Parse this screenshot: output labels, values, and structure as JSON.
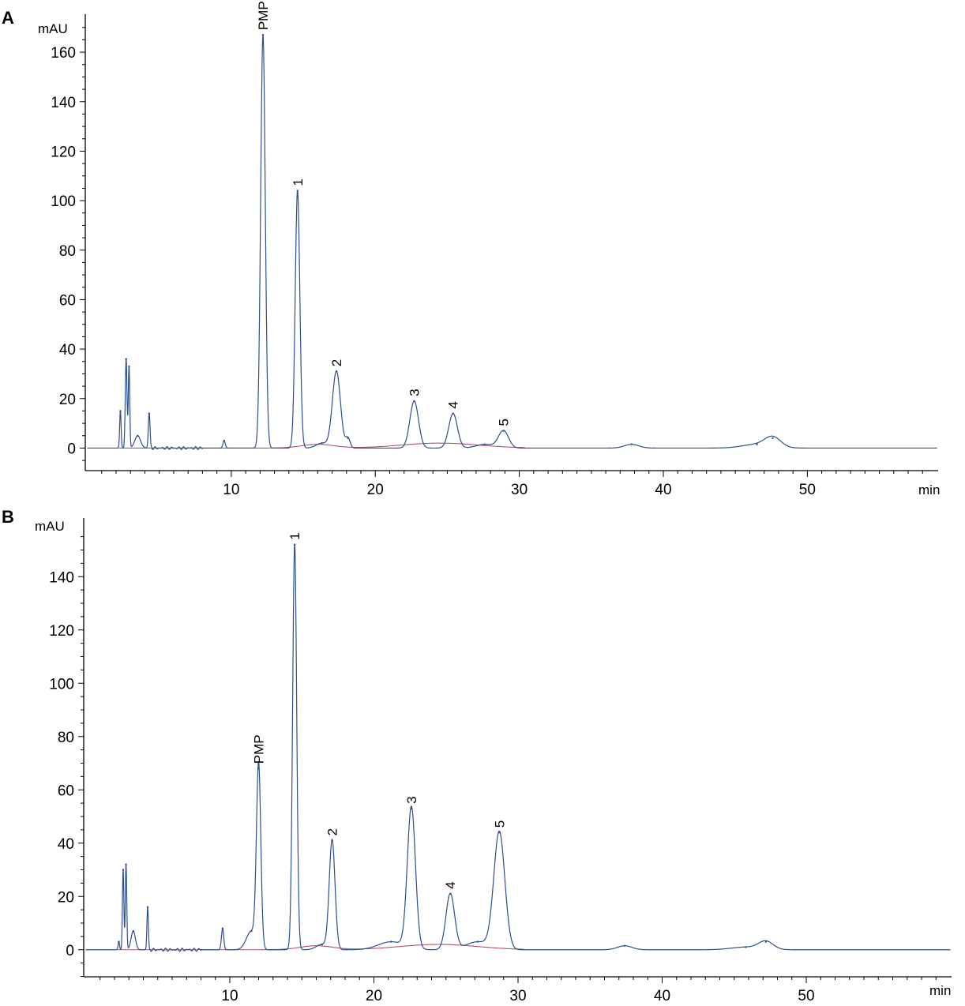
{
  "chart_data": [
    {
      "type": "line",
      "panel": "A",
      "xlabel": "min",
      "ylabel": "mAU",
      "xlim": [
        0,
        59
      ],
      "ylim": [
        -8,
        172
      ],
      "x_ticks": [
        10,
        20,
        30,
        40,
        50
      ],
      "y_ticks": [
        0,
        20,
        40,
        60,
        80,
        100,
        120,
        140,
        160
      ],
      "grid": false,
      "legend": "none",
      "colors": {
        "signal": "#2d4f8e",
        "baseline": "#b0506e"
      },
      "peaks": [
        {
          "label": "",
          "rt": 2.3,
          "height": 15,
          "width": 0.05
        },
        {
          "label": "",
          "rt": 2.7,
          "height": 36,
          "width": 0.06
        },
        {
          "label": "",
          "rt": 2.9,
          "height": 33,
          "width": 0.05
        },
        {
          "label": "",
          "rt": 3.5,
          "height": 5,
          "width": 0.2
        },
        {
          "label": "",
          "rt": 4.3,
          "height": 14,
          "width": 0.06
        },
        {
          "label": "",
          "rt": 9.5,
          "height": 3,
          "width": 0.08
        },
        {
          "label": "PMP",
          "rt": 12.2,
          "height": 167,
          "width": 0.16
        },
        {
          "label": "1",
          "rt": 14.6,
          "height": 104,
          "width": 0.16
        },
        {
          "label": "",
          "rt": 16.3,
          "height": 2,
          "width": 0.4
        },
        {
          "label": "2",
          "rt": 17.3,
          "height": 31,
          "width": 0.28
        },
        {
          "label": "",
          "rt": 18.1,
          "height": 4,
          "width": 0.15
        },
        {
          "label": "3",
          "rt": 22.7,
          "height": 19,
          "width": 0.3
        },
        {
          "label": "4",
          "rt": 25.4,
          "height": 14,
          "width": 0.3
        },
        {
          "label": "",
          "rt": 27.6,
          "height": 1.5,
          "width": 0.6
        },
        {
          "label": "5",
          "rt": 28.9,
          "height": 7,
          "width": 0.35
        },
        {
          "label": "",
          "rt": 37.8,
          "height": 1.5,
          "width": 0.5
        },
        {
          "label": "",
          "rt": 46.5,
          "height": 1.5,
          "width": 1.0
        },
        {
          "label": "",
          "rt": 47.6,
          "height": 4,
          "width": 0.55
        }
      ]
    },
    {
      "type": "line",
      "panel": "B",
      "xlabel": "min",
      "ylabel": "mAU",
      "xlim": [
        0,
        60
      ],
      "ylim": [
        -10,
        158
      ],
      "x_ticks": [
        10,
        20,
        30,
        40,
        50
      ],
      "y_ticks": [
        0,
        20,
        40,
        60,
        80,
        100,
        120,
        140
      ],
      "grid": false,
      "legend": "none",
      "colors": {
        "signal": "#2d4f8e",
        "baseline": "#b0506e"
      },
      "peaks": [
        {
          "label": "",
          "rt": 2.3,
          "height": 3,
          "width": 0.05
        },
        {
          "label": "",
          "rt": 2.6,
          "height": 30,
          "width": 0.05
        },
        {
          "label": "",
          "rt": 2.8,
          "height": 32,
          "width": 0.05
        },
        {
          "label": "",
          "rt": 3.3,
          "height": 7,
          "width": 0.15
        },
        {
          "label": "",
          "rt": 4.3,
          "height": 16,
          "width": 0.05
        },
        {
          "label": "",
          "rt": 9.5,
          "height": 8,
          "width": 0.08
        },
        {
          "label": "",
          "rt": 11.5,
          "height": 7,
          "width": 0.35
        },
        {
          "label": "PMP",
          "rt": 12.0,
          "height": 68,
          "width": 0.15
        },
        {
          "label": "1",
          "rt": 14.5,
          "height": 152,
          "width": 0.14
        },
        {
          "label": "",
          "rt": 16.4,
          "height": 2,
          "width": 0.4
        },
        {
          "label": "2",
          "rt": 17.1,
          "height": 41,
          "width": 0.2
        },
        {
          "label": "",
          "rt": 21.2,
          "height": 3,
          "width": 0.9
        },
        {
          "label": "3",
          "rt": 22.6,
          "height": 53,
          "width": 0.28
        },
        {
          "label": "4",
          "rt": 25.3,
          "height": 21,
          "width": 0.3
        },
        {
          "label": "",
          "rt": 27.2,
          "height": 3,
          "width": 0.8
        },
        {
          "label": "5",
          "rt": 28.7,
          "height": 44,
          "width": 0.38
        },
        {
          "label": "",
          "rt": 37.4,
          "height": 1.5,
          "width": 0.5
        },
        {
          "label": "",
          "rt": 45.8,
          "height": 1,
          "width": 1.0
        },
        {
          "label": "",
          "rt": 47.2,
          "height": 3,
          "width": 0.5
        }
      ]
    }
  ]
}
